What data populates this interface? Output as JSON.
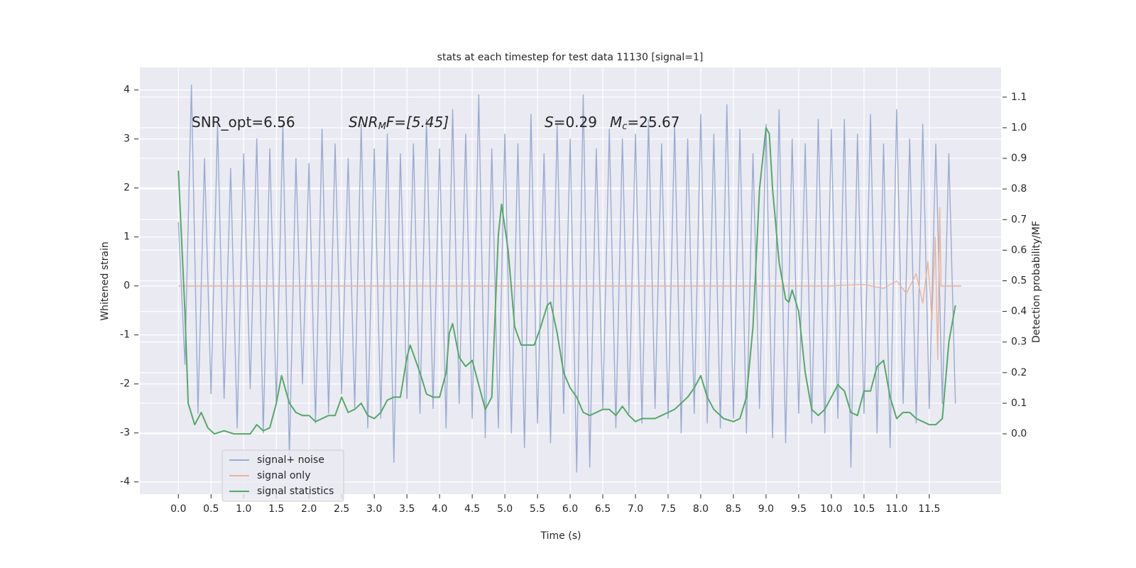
{
  "chart_data": {
    "type": "line",
    "title": "stats at each timestep for test data 11130 [signal=1]",
    "x_label": "Time (s)",
    "y_label": "Whitened strain",
    "y2_label": "Detection probability/MF",
    "annotations": [
      [
        "SNR_opt=6.56"
      ],
      [
        "SNR",
        "M",
        "F=[5.45]"
      ],
      [
        "S",
        "=0.29"
      ],
      [
        "M",
        "c",
        "=25.67"
      ]
    ],
    "xlim": [
      -0.59,
      12.6
    ],
    "ylim": [
      -4.25,
      4.46
    ],
    "y2lim": [
      -0.197,
      1.197
    ],
    "xticks": [
      {
        "value": 0,
        "label": "0.0"
      },
      0.5,
      {
        "value": 1,
        "label": "1.0"
      },
      1.5,
      {
        "value": 2,
        "label": "2.0"
      },
      2.5,
      {
        "value": 3,
        "label": "3.0"
      },
      3.5,
      {
        "value": 4,
        "label": "4.0"
      },
      4.5,
      {
        "value": 5,
        "label": "5.0"
      },
      5.5,
      {
        "value": 6,
        "label": "6.0"
      },
      6.5,
      {
        "value": 7,
        "label": "7.0"
      },
      7.5,
      {
        "value": 8,
        "label": "8.0"
      },
      8.5,
      {
        "value": 9,
        "label": "9.0"
      },
      9.5,
      {
        "value": 10,
        "label": "10.0"
      },
      10.5,
      {
        "value": 11,
        "label": "11.0"
      },
      11.5
    ],
    "yticks": [
      -4,
      -3,
      -2,
      -1,
      0,
      1,
      2,
      3,
      4
    ],
    "y2ticks": [
      {
        "value": 0,
        "label": "0.0"
      },
      0.1,
      0.2,
      0.3,
      0.4,
      0.5,
      0.6,
      0.7,
      0.8,
      0.9,
      {
        "value": 1,
        "label": "1.0"
      },
      1.1
    ],
    "grid": true,
    "legend": "lower left",
    "series": [
      {
        "name": "signal+ noise",
        "color": "#9aabd2",
        "x": [
          0,
          0.1,
          0.2,
          0.3,
          0.4,
          0.5,
          0.6,
          0.7,
          0.8,
          0.9,
          1,
          1.1,
          1.2,
          1.3,
          1.4,
          1.5,
          1.6,
          1.7,
          1.8,
          1.9,
          2,
          2.1,
          2.2,
          2.3,
          2.4,
          2.5,
          2.6,
          2.7,
          2.8,
          2.9,
          3,
          3.1,
          3.2,
          3.3,
          3.4,
          3.5,
          3.6,
          3.7,
          3.8,
          3.9,
          4,
          4.1,
          4.2,
          4.3,
          4.4,
          4.5,
          4.6,
          4.7,
          4.8,
          4.9,
          5,
          5.1,
          5.2,
          5.3,
          5.4,
          5.5,
          5.6,
          5.7,
          5.8,
          5.9,
          6,
          6.1,
          6.2,
          6.3,
          6.4,
          6.5,
          6.6,
          6.7,
          6.8,
          6.9,
          7,
          7.1,
          7.2,
          7.3,
          7.4,
          7.5,
          7.6,
          7.7,
          7.8,
          7.9,
          8,
          8.1,
          8.2,
          8.3,
          8.4,
          8.5,
          8.6,
          8.7,
          8.8,
          8.9,
          9,
          9.1,
          9.2,
          9.3,
          9.4,
          9.5,
          9.6,
          9.7,
          9.8,
          9.9,
          10,
          10.1,
          10.2,
          10.3,
          10.4,
          10.5,
          10.6,
          10.7,
          10.8,
          10.9,
          11,
          11.1,
          11.2,
          11.3,
          11.4,
          11.5,
          11.6,
          11.7,
          11.8,
          11.9
        ],
        "values": [
          1.3,
          -1.6,
          4.1,
          -2.6,
          2.6,
          -2.2,
          3.3,
          -2.3,
          2.4,
          -2.9,
          2.7,
          -2.1,
          3.0,
          -3.0,
          2.8,
          -2.4,
          3.3,
          -3.5,
          2.6,
          -2.0,
          2.5,
          -2.8,
          3.2,
          -2.6,
          2.9,
          -2.2,
          2.6,
          -2.5,
          3.3,
          -2.9,
          2.8,
          -2.7,
          3.1,
          -3.6,
          2.7,
          -2.3,
          2.9,
          -2.6,
          3.4,
          -2.5,
          2.8,
          -2.9,
          3.6,
          -2.4,
          3.1,
          -2.7,
          3.9,
          -3.1,
          2.8,
          -2.9,
          3.1,
          -3.0,
          2.9,
          -3.3,
          3.5,
          -2.8,
          2.7,
          -3.2,
          3.3,
          -2.6,
          3.0,
          -3.8,
          3.9,
          -3.7,
          2.8,
          -2.5,
          3.2,
          -2.9,
          3.0,
          -2.6,
          3.1,
          -2.8,
          3.4,
          -2.5,
          2.9,
          -2.7,
          3.3,
          -3.0,
          3.0,
          -2.6,
          3.5,
          -2.8,
          3.1,
          -2.9,
          3.7,
          -2.7,
          3.2,
          -3.0,
          2.7,
          -2.5,
          3.3,
          -3.1,
          3.6,
          -3.2,
          3.0,
          -2.6,
          2.9,
          -2.8,
          3.4,
          -3.0,
          3.2,
          -2.7,
          3.4,
          -3.7,
          3.1,
          -2.6,
          3.5,
          -3.0,
          2.9,
          -3.3,
          3.6,
          -2.4,
          3.0,
          -2.8,
          3.3,
          -2.5,
          2.9,
          -2.4,
          2.7,
          -2.4
        ]
      },
      {
        "name": "signal only",
        "color": "#e8b49c",
        "x": [
          0,
          10,
          10.5,
          10.8,
          11,
          11.15,
          11.3,
          11.4,
          11.48,
          11.54,
          11.59,
          11.63,
          11.66,
          11.68,
          11.7,
          11.99
        ],
        "values": [
          0,
          0,
          0.03,
          -0.05,
          0.1,
          -0.15,
          0.25,
          -0.35,
          0.5,
          -0.7,
          1.0,
          -1.5,
          1.6,
          0,
          0,
          0
        ]
      },
      {
        "name": "signal statistics",
        "color": "#55a868",
        "axis": "y2",
        "x": [
          0,
          0.1,
          0.15,
          0.25,
          0.35,
          0.45,
          0.55,
          0.7,
          0.85,
          1,
          1.1,
          1.2,
          1.3,
          1.4,
          1.5,
          1.58,
          1.7,
          1.8,
          1.9,
          2,
          2.1,
          2.2,
          2.3,
          2.4,
          2.5,
          2.6,
          2.7,
          2.8,
          2.9,
          3,
          3.1,
          3.2,
          3.3,
          3.4,
          3.5,
          3.55,
          3.7,
          3.8,
          3.9,
          4,
          4.1,
          4.15,
          4.2,
          4.3,
          4.4,
          4.5,
          4.6,
          4.7,
          4.8,
          4.9,
          4.95,
          5.05,
          5.15,
          5.25,
          5.35,
          5.45,
          5.55,
          5.65,
          5.7,
          5.8,
          5.9,
          6,
          6.1,
          6.2,
          6.3,
          6.4,
          6.5,
          6.6,
          6.7,
          6.8,
          6.9,
          7,
          7.1,
          7.2,
          7.3,
          7.4,
          7.5,
          7.6,
          7.7,
          7.8,
          7.9,
          8,
          8.1,
          8.2,
          8.35,
          8.5,
          8.6,
          8.7,
          8.8,
          8.9,
          9,
          9.05,
          9.1,
          9.2,
          9.3,
          9.35,
          9.4,
          9.5,
          9.6,
          9.7,
          9.8,
          9.9,
          10,
          10.1,
          10.2,
          10.3,
          10.4,
          10.5,
          10.6,
          10.7,
          10.8,
          10.9,
          11,
          11.1,
          11.2,
          11.3,
          11.4,
          11.5,
          11.6,
          11.7,
          11.8,
          11.9
        ],
        "values": [
          0.86,
          0.4,
          0.1,
          0.03,
          0.07,
          0.02,
          0.0,
          0.01,
          0.0,
          0.0,
          0.0,
          0.03,
          0.01,
          0.02,
          0.1,
          0.19,
          0.1,
          0.07,
          0.06,
          0.06,
          0.04,
          0.05,
          0.06,
          0.06,
          0.12,
          0.07,
          0.08,
          0.1,
          0.06,
          0.05,
          0.07,
          0.11,
          0.12,
          0.12,
          0.25,
          0.29,
          0.2,
          0.13,
          0.12,
          0.12,
          0.2,
          0.33,
          0.36,
          0.25,
          0.22,
          0.24,
          0.16,
          0.08,
          0.12,
          0.65,
          0.75,
          0.6,
          0.35,
          0.29,
          0.29,
          0.29,
          0.35,
          0.42,
          0.43,
          0.33,
          0.2,
          0.15,
          0.12,
          0.07,
          0.06,
          0.07,
          0.08,
          0.08,
          0.06,
          0.09,
          0.06,
          0.04,
          0.05,
          0.05,
          0.05,
          0.06,
          0.07,
          0.08,
          0.1,
          0.12,
          0.15,
          0.19,
          0.12,
          0.08,
          0.05,
          0.04,
          0.05,
          0.12,
          0.35,
          0.8,
          1.0,
          0.98,
          0.8,
          0.56,
          0.44,
          0.43,
          0.47,
          0.4,
          0.2,
          0.08,
          0.06,
          0.08,
          0.12,
          0.16,
          0.14,
          0.07,
          0.06,
          0.14,
          0.14,
          0.22,
          0.24,
          0.12,
          0.05,
          0.07,
          0.07,
          0.05,
          0.04,
          0.03,
          0.03,
          0.05,
          0.3,
          0.42
        ]
      }
    ]
  }
}
